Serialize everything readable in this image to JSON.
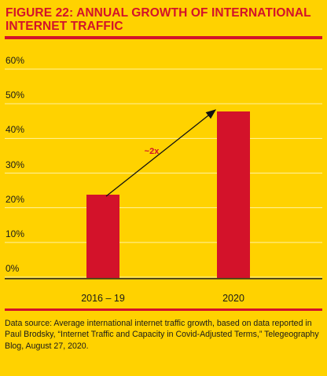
{
  "header": {
    "title": "FIGURE 22: ANNUAL GROWTH OF INTERNATIONAL\nINTERNET TRAFFIC"
  },
  "footer": {
    "source": "Data source: Average international internet traffic growth, based on data reported in Paul Brodsky, “Internet Traffic and Capacity in Covid-Adjusted Terms,” Telegeography Blog, August 27, 2020."
  },
  "chart_data": {
    "type": "bar",
    "title": "FIGURE 22: ANNUAL GROWTH OF INTERNATIONAL INTERNET TRAFFIC",
    "categories": [
      "2016 – 19",
      "2020"
    ],
    "values": [
      24,
      48
    ],
    "ylim": [
      0,
      60
    ],
    "yticks": [
      0,
      10,
      20,
      30,
      40,
      50,
      60
    ],
    "ytick_labels": [
      "0%",
      "10%",
      "20%",
      "30%",
      "40%",
      "50%",
      "60%"
    ],
    "grid": true,
    "annotation": {
      "text": "~2x",
      "from_category": "2016 – 19",
      "to_category": "2020"
    },
    "colors": {
      "bar": "#d3122a",
      "grid": "#fff3a0",
      "background": "#ffd200"
    }
  }
}
